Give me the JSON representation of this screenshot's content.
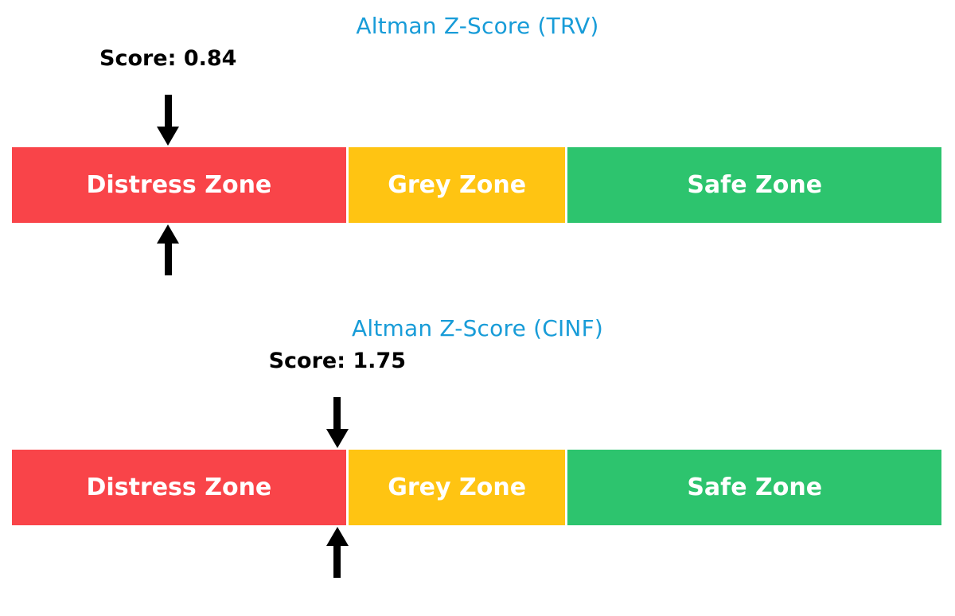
{
  "chart_data": [
    {
      "type": "bar",
      "title": "Altman Z-Score (TRV)",
      "title_color": "#189CD8",
      "score": 0.84,
      "score_label": "Score: 0.84",
      "axis_range": [
        0,
        5
      ],
      "marker_color": "#000000",
      "zones": [
        {
          "label": "Distress Zone",
          "range": [
            0,
            1.81
          ],
          "color": "#F94449"
        },
        {
          "label": "Grey Zone",
          "range": [
            1.81,
            2.99
          ],
          "color": "#FFC412"
        },
        {
          "label": "Safe Zone",
          "range": [
            2.99,
            5
          ],
          "color": "#2DC46E"
        }
      ]
    },
    {
      "type": "bar",
      "title": "Altman Z-Score (CINF)",
      "title_color": "#189CD8",
      "score": 1.75,
      "score_label": "Score: 1.75",
      "axis_range": [
        0,
        5
      ],
      "marker_color": "#000000",
      "zones": [
        {
          "label": "Distress Zone",
          "range": [
            0,
            1.81
          ],
          "color": "#F94449"
        },
        {
          "label": "Grey Zone",
          "range": [
            1.81,
            2.99
          ],
          "color": "#FFC412"
        },
        {
          "label": "Safe Zone",
          "range": [
            2.99,
            5
          ],
          "color": "#2DC46E"
        }
      ]
    }
  ]
}
